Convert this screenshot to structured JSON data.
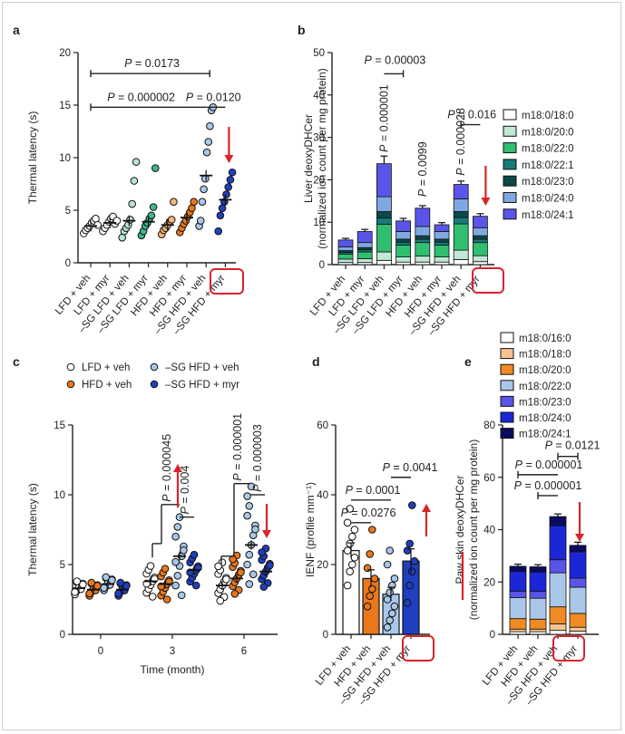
{
  "chart_data": [
    {
      "panel": "a",
      "type": "scatter",
      "ylabel": "Thermal latency (s)",
      "ylim": [
        0,
        20
      ],
      "yticks": [
        0,
        5,
        10,
        15,
        20
      ],
      "categories": [
        "LFD + veh",
        "LFD + myr",
        "–SG LFD + veh",
        "–SG LFD + myr",
        "HFD + veh",
        "HFD + myr",
        "–SG HFD + veh",
        "–SG HFD + myr"
      ],
      "highlight": "myr",
      "colors": [
        "#ffffff",
        "#ffffff",
        "#b9e3d2",
        "#3fb58a",
        "#f7b67a",
        "#e9781c",
        "#a9c7e8",
        "#1f3fbf"
      ],
      "means": [
        3.5,
        3.8,
        4.0,
        3.9,
        3.6,
        4.3,
        8.3,
        6.0
      ],
      "points": [
        [
          2.8,
          3.1,
          3.3,
          3.5,
          3.8,
          4.0,
          4.2,
          3.6
        ],
        [
          3.0,
          3.3,
          3.6,
          3.9,
          4.2,
          4.4,
          3.7,
          4.0
        ],
        [
          2.4,
          3.0,
          3.3,
          3.6,
          4.1,
          5.6,
          7.8,
          9.6
        ],
        [
          2.6,
          3.0,
          3.5,
          3.8,
          4.2,
          4.5,
          5.3,
          9.0
        ],
        [
          2.7,
          3.1,
          3.3,
          3.6,
          3.9,
          4.1,
          5.8
        ],
        [
          2.9,
          3.3,
          3.7,
          4.0,
          4.4,
          4.8,
          5.2,
          5.8
        ],
        [
          3.5,
          4.0,
          5.8,
          7.0,
          8.0,
          10.5,
          11.5,
          13.0,
          14.5,
          14.8
        ],
        [
          3.0,
          4.5,
          5.2,
          5.8,
          6.5,
          7.2,
          7.9,
          8.6
        ]
      ],
      "pvalues": [
        {
          "label": "P = 0.0173",
          "from": 0,
          "to": 6,
          "y": 18.0
        },
        {
          "label": "P = 0.000002",
          "from": 0,
          "to": 6,
          "y": 14.8
        },
        {
          "label": "P = 0.0120",
          "from": 6,
          "to": 7,
          "y": 14.8
        }
      ]
    },
    {
      "panel": "b",
      "type": "bar",
      "stacked": true,
      "ylabel": "Liver deoxyDHCer",
      "ylabel2": "(normalized ion count per mg protein)",
      "ylim": [
        0,
        50
      ],
      "yticks": [
        0,
        10,
        20,
        30,
        40,
        50
      ],
      "categories": [
        "LFD + veh",
        "LFD + myr",
        "–SG LFD + veh",
        "–SG LFD + myr",
        "HFD + veh",
        "HFD + myr",
        "–SG HFD + veh",
        "–SG HFD + myr"
      ],
      "highlight": "myr",
      "series": [
        {
          "name": "m18:0/18:0",
          "color": "#ffffff",
          "values": [
            0.5,
            0.5,
            1.0,
            0.6,
            0.6,
            0.6,
            1.2,
            0.7
          ]
        },
        {
          "name": "m18:0/20:0",
          "color": "#bfe9d4",
          "values": [
            0.8,
            0.9,
            2.0,
            1.2,
            1.4,
            1.2,
            2.2,
            1.4
          ]
        },
        {
          "name": "m18:0/22:0",
          "color": "#2fbf6f",
          "values": [
            1.2,
            1.6,
            6.5,
            2.8,
            3.2,
            2.8,
            6.2,
            3.1
          ]
        },
        {
          "name": "m18:0/22:1",
          "color": "#187a7a",
          "values": [
            0.4,
            0.5,
            1.5,
            0.7,
            0.8,
            0.7,
            1.5,
            0.8
          ]
        },
        {
          "name": "m18:0/23:0",
          "color": "#0b4a4a",
          "values": [
            0.4,
            0.5,
            1.5,
            0.7,
            0.8,
            0.7,
            1.4,
            0.8
          ]
        },
        {
          "name": "m18:0/24:0",
          "color": "#7fa8e0",
          "values": [
            0.9,
            1.2,
            3.5,
            1.8,
            2.2,
            1.8,
            3.0,
            1.9
          ]
        },
        {
          "name": "m18:0/24:1",
          "color": "#5a55e8",
          "values": [
            1.6,
            2.6,
            7.8,
            2.5,
            4.3,
            1.6,
            3.4,
            2.7
          ]
        }
      ],
      "errors": [
        0.4,
        0.5,
        1.8,
        0.6,
        0.6,
        0.5,
        0.8,
        0.6
      ],
      "pvalues": [
        {
          "label": "P = 0.00003",
          "from": 2,
          "to": 3,
          "y": 45,
          "line": true
        },
        {
          "label": "P = 0.000001",
          "at": 2,
          "vertical": true
        },
        {
          "label": "P = 0.0099",
          "at": 4,
          "vertical": true
        },
        {
          "label": "P = 0.000028",
          "at": 6,
          "vertical": true
        },
        {
          "label": "P = 0.016",
          "from": 6,
          "to": 7,
          "y": 33,
          "line": true
        }
      ]
    },
    {
      "panel": "c",
      "type": "scatter",
      "xlabel": "Time (month)",
      "ylabel": "Thermal latency (s)",
      "ylim": [
        0,
        15
      ],
      "yticks": [
        0,
        5,
        10,
        15
      ],
      "xticks": [
        "0",
        "3",
        "6"
      ],
      "series": [
        {
          "name": "LFD + veh",
          "color": "#ffffff",
          "means": [
            3.3,
            3.8,
            3.5
          ]
        },
        {
          "name": "HFD + veh",
          "color": "#e9781c",
          "means": [
            3.2,
            3.6,
            4.0
          ]
        },
        {
          "name": "–SG HFD + veh",
          "color": "#a9c7e8",
          "means": [
            3.6,
            5.6,
            6.4
          ]
        },
        {
          "name": "–SG HFD + myr",
          "color": "#1f3fbf",
          "means": [
            3.2,
            4.6,
            4.5
          ]
        }
      ],
      "pvalues": [
        {
          "label": "P = 0.000045",
          "at": "3",
          "vertical": true
        },
        {
          "label": "P = 0.004",
          "at": "3",
          "vertical": true
        },
        {
          "label": "P = 0.000001",
          "at": "6",
          "vertical": true
        },
        {
          "label": "P = 0.000003",
          "at": "6",
          "vertical": true
        }
      ]
    },
    {
      "panel": "d",
      "type": "bar",
      "ylabel": "IENF (profile mm⁻¹)",
      "ylim": [
        0,
        60
      ],
      "yticks": [
        0,
        20,
        40,
        60
      ],
      "categories": [
        "LFD + veh",
        "HFD + veh",
        "–SG HFD + veh",
        "–SG HFD + myr"
      ],
      "highlight": "myr",
      "colors": [
        "#ffffff",
        "#e9781c",
        "#a9c7e8",
        "#1f3fbf"
      ],
      "values": [
        24.0,
        16.0,
        11.5,
        21.0
      ],
      "errors": [
        2.2,
        2.5,
        2.0,
        3.5
      ],
      "points": [
        [
          14,
          18,
          20,
          22,
          24,
          26,
          28,
          30,
          32,
          36
        ],
        [
          8,
          11,
          13,
          16,
          19,
          23,
          30
        ],
        [
          2,
          4,
          6,
          8,
          10,
          12,
          14,
          16,
          20,
          24
        ],
        [
          9,
          14,
          18,
          21,
          24,
          26,
          37
        ]
      ],
      "pvalues": [
        {
          "label": "P = 0.0041",
          "from": 2,
          "to": 3,
          "y": 45
        },
        {
          "label": "P = 0.0001",
          "from": 0,
          "to": 2,
          "y": 38.5
        },
        {
          "label": "P = 0.0276",
          "from": 0,
          "to": 1,
          "y": 32
        }
      ]
    },
    {
      "panel": "e",
      "type": "bar",
      "stacked": true,
      "ylabel": "Paw skin deoxyDHCer",
      "ylabel2": "(normalized ion count per mg protein)",
      "ylim": [
        0,
        80
      ],
      "yticks": [
        0,
        20,
        40,
        60,
        80
      ],
      "categories": [
        "LFD + veh",
        "HFD + veh",
        "–SG HFD + veh",
        "–SG HFD + myr"
      ],
      "highlight": "myr",
      "series": [
        {
          "name": "m18:0/16:0",
          "color": "#ffffff",
          "values": [
            1.0,
            1.0,
            1.5,
            1.2
          ]
        },
        {
          "name": "m18:0/18:0",
          "color": "#f7c38f",
          "values": [
            1.0,
            1.0,
            2.5,
            1.5
          ]
        },
        {
          "name": "m18:0/20:0",
          "color": "#f08a24",
          "values": [
            4.0,
            3.8,
            6.5,
            5.3
          ]
        },
        {
          "name": "m18:0/22:0",
          "color": "#a9c7e8",
          "values": [
            8.0,
            8.0,
            13.0,
            10.0
          ]
        },
        {
          "name": "m18:0/23:0",
          "color": "#5a55e8",
          "values": [
            2.5,
            2.6,
            5.0,
            3.5
          ]
        },
        {
          "name": "m18:0/24:0",
          "color": "#1b27d6",
          "values": [
            7.5,
            7.4,
            13.0,
            10.0
          ]
        },
        {
          "name": "m18:0/24:1",
          "color": "#0a0a5e",
          "values": [
            2.0,
            2.0,
            3.5,
            2.5
          ]
        }
      ],
      "errors": [
        0.8,
        0.8,
        1.0,
        1.2
      ],
      "pvalues": [
        {
          "label": "P = 0.0121",
          "from": 2,
          "to": 3,
          "y": 68
        },
        {
          "label": "P = 0.000001",
          "from": 0,
          "to": 2,
          "y": 61
        },
        {
          "label": "P = 0.000001",
          "from": 1,
          "to": 2,
          "y": 53
        }
      ]
    }
  ],
  "panel_letters": [
    "a",
    "b",
    "c",
    "d",
    "e"
  ],
  "text": {
    "a_ylabel": "Thermal latency (s)",
    "b_ylabel": "Liver deoxyDHCer",
    "b_ylabel2": "(normalized ion count per mg protein)",
    "c_ylabel": "Thermal latency (s)",
    "c_xlabel": "Time (month)",
    "d_ylabel": "IENF (profile mm⁻¹)",
    "e_ylabel": "Paw skin deoxyDHCer",
    "e_ylabel2": "(normalized ion count per mg protein)"
  },
  "colors": {
    "highlight": "#d9232d",
    "axis": "#222222"
  }
}
